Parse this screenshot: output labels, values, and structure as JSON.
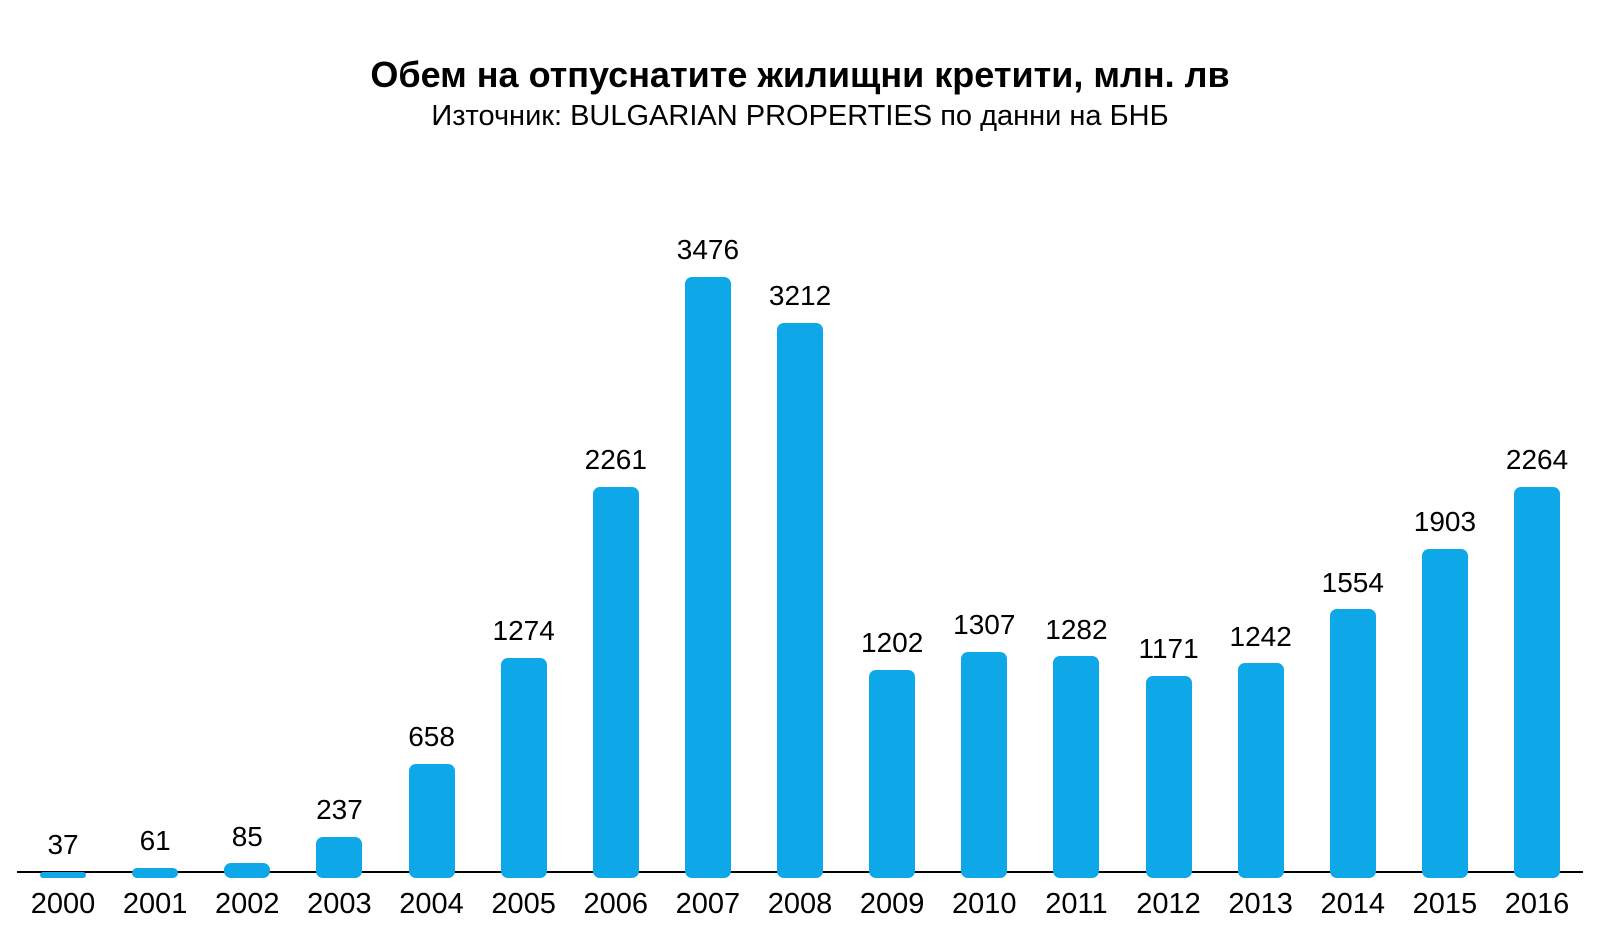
{
  "chart_data": {
    "type": "bar",
    "title": "Обем на отпуснатите жилищни кретити, млн. лв",
    "subtitle": "Източник: BULGARIAN PROPERTIES по данни на БНБ",
    "categories": [
      "2000",
      "2001",
      "2002",
      "2003",
      "2004",
      "2005",
      "2006",
      "2007",
      "2008",
      "2009",
      "2010",
      "2011",
      "2012",
      "2013",
      "2014",
      "2015",
      "2016"
    ],
    "values": [
      37,
      61,
      85,
      237,
      658,
      1274,
      2261,
      3476,
      3212,
      1202,
      1307,
      1282,
      1171,
      1242,
      1554,
      1903,
      2264
    ],
    "xlabel": "",
    "ylabel": "",
    "ylim": [
      0,
      3476
    ],
    "grid": false,
    "legend": false,
    "data_labels": true,
    "bar_color": "#0EA8E8",
    "axis_color": "#000000",
    "text_color": "#000000"
  }
}
